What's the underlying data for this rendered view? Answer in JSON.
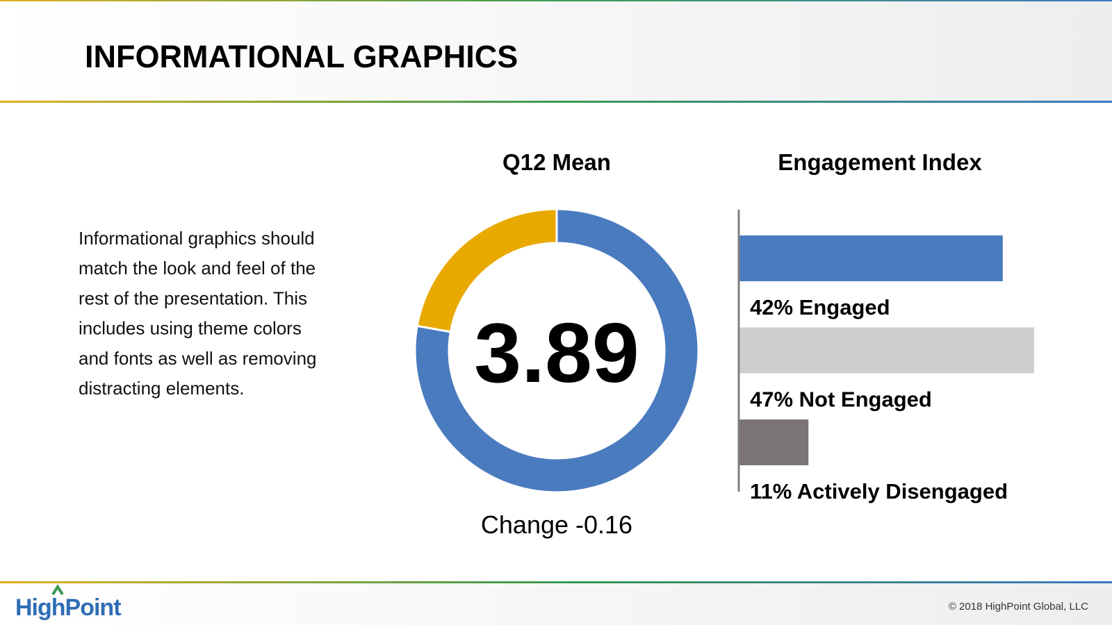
{
  "header": {
    "title": "INFORMATIONAL GRAPHICS"
  },
  "body": [
    "Informational graphics should",
    "match the look and feel of the",
    "rest of the presentation. This",
    "includes using theme colors",
    "and fonts as well as removing",
    "distracting elements."
  ],
  "chart_data": [
    {
      "type": "donut",
      "title": "Q12 Mean",
      "values": [
        3.89,
        1.11
      ],
      "colors": [
        "#4a7bbf",
        "#e8a900"
      ],
      "annotation": "Change -0.16"
    },
    {
      "type": "hbar",
      "title": "Engagement Index",
      "values": [
        42,
        47,
        11
      ],
      "value_labels": [
        "42% Engaged",
        "47% Not Engaged",
        "11% Actively Disengaged"
      ],
      "colors": [
        "#4a7bbf",
        "#d0cfd0",
        "#7a7474"
      ]
    }
  ],
  "footer": {
    "logo": "HighPoint",
    "copyright": "© 2018 HighPoint Global, LLC"
  }
}
